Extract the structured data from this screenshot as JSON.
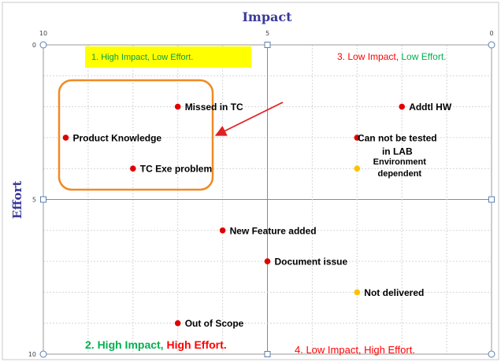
{
  "chart_data": {
    "type": "scatter",
    "title": "Impact",
    "xlabel": "",
    "ylabel": "Effort",
    "xlim": [
      10,
      0
    ],
    "ylim": [
      0,
      10
    ],
    "x_ticks": [
      "10",
      "5",
      "0"
    ],
    "y_ticks": [
      "0",
      "5",
      "10"
    ],
    "grid": true,
    "points": [
      {
        "label": "Missed in TC",
        "x": 7.0,
        "y": 2.0,
        "color": "#e00000"
      },
      {
        "label": "Product Knowledge",
        "x": 9.5,
        "y": 3.0,
        "color": "#e00000"
      },
      {
        "label": "TC Exe problem",
        "x": 8.0,
        "y": 4.0,
        "color": "#e00000"
      },
      {
        "label": "Addtl HW",
        "x": 2.0,
        "y": 2.0,
        "color": "#e00000"
      },
      {
        "label_lines": [
          "Can not be tested",
          "in LAB"
        ],
        "x": 3.0,
        "y": 3.0,
        "color": "#e00000"
      },
      {
        "label_lines": [
          "Environment",
          "dependent"
        ],
        "x": 3.0,
        "y": 4.0,
        "color": "#ffc000"
      },
      {
        "label": "New Feature added",
        "x": 6.0,
        "y": 6.0,
        "color": "#e00000"
      },
      {
        "label": "Document issue",
        "x": 5.0,
        "y": 7.0,
        "color": "#e00000"
      },
      {
        "label": "Not delivered",
        "x": 3.0,
        "y": 8.0,
        "color": "#ffc000"
      },
      {
        "label": "Out of Scope",
        "x": 7.0,
        "y": 9.0,
        "color": "#e00000"
      }
    ],
    "quadrants": [
      {
        "parts": [
          {
            "text": "1. High Impact, Low Effort.",
            "color": "#00a050"
          }
        ],
        "position": "top-left",
        "highlight": "#ffff00"
      },
      {
        "parts": [
          {
            "text": "3. Low Impact, ",
            "color": "#ff0000"
          },
          {
            "text": "Low Effort.",
            "color": "#00b050"
          }
        ],
        "position": "top-right"
      },
      {
        "parts": [
          {
            "text": "2. High Impact, ",
            "color": "#00b050"
          },
          {
            "text": "High Effort.",
            "color": "#ff0000"
          }
        ],
        "position": "bottom-left"
      },
      {
        "parts": [
          {
            "text": "4. Low Impact, High Effort.",
            "color": "#ff0000"
          }
        ],
        "position": "bottom-right"
      }
    ],
    "colors": {
      "title": "#3a3a9a",
      "highlight_box": "#f08a24",
      "arrow": "#e02020",
      "frame": "#5b7fb0"
    }
  }
}
